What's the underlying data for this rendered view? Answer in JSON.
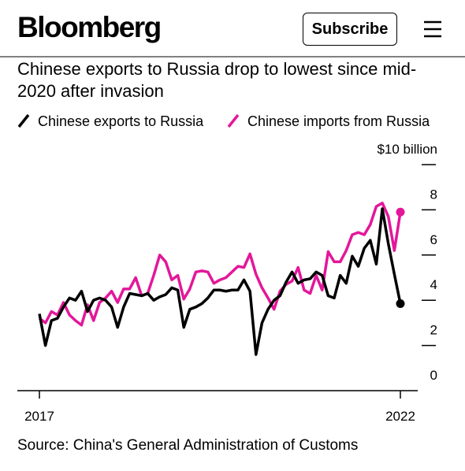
{
  "header": {
    "logo": "Bloomberg",
    "button": "Subscribe"
  },
  "chart_data": {
    "type": "line",
    "title": "Chinese exports to Russia drop to lowest since mid-2020 after invasion",
    "source": "Source: China's General Administration of Customs",
    "x": [
      0,
      1,
      2,
      3,
      4,
      5,
      6,
      7,
      8,
      9,
      10,
      11,
      12,
      13,
      14,
      15,
      16,
      17,
      18,
      19,
      20,
      21,
      22,
      23,
      24,
      25,
      26,
      27,
      28,
      29,
      30,
      31,
      32,
      33,
      34,
      35,
      36,
      37,
      38,
      39,
      40,
      41,
      42,
      43,
      44,
      45,
      46,
      47,
      48,
      49,
      50,
      51,
      52,
      53,
      54,
      55,
      56,
      57,
      58,
      59,
      60
    ],
    "xlim": [
      0,
      60
    ],
    "xticks": [
      {
        "value": 0,
        "label": "2017"
      },
      {
        "value": 60,
        "label": "2022"
      }
    ],
    "ylim": [
      0,
      10
    ],
    "yticks": [
      0,
      2,
      4,
      6,
      8,
      {
        "value": 10,
        "label": "$10 billion"
      }
    ],
    "series": [
      {
        "name": "Chinese exports to Russia",
        "color": "#000000",
        "values": [
          3.4,
          2.0,
          3.1,
          3.2,
          3.7,
          4.1,
          4.0,
          4.4,
          3.5,
          4.0,
          4.1,
          4.0,
          3.7,
          2.8,
          3.7,
          4.3,
          4.25,
          4.2,
          4.3,
          4.0,
          4.15,
          4.25,
          4.55,
          4.45,
          2.8,
          3.6,
          3.7,
          3.85,
          4.1,
          4.45,
          4.45,
          4.4,
          4.45,
          4.45,
          4.9,
          4.4,
          1.6,
          3.0,
          3.6,
          4.0,
          4.2,
          4.8,
          5.25,
          4.75,
          4.9,
          4.95,
          5.25,
          5.1,
          4.2,
          4.1,
          5.1,
          4.75,
          5.95,
          5.5,
          6.3,
          6.65,
          5.6,
          8.05,
          6.5,
          5.15,
          3.85
        ]
      },
      {
        "name": "Chinese imports from Russia",
        "color": "#e3179a",
        "values": [
          3.2,
          3.0,
          3.5,
          3.35,
          3.9,
          3.35,
          3.1,
          2.9,
          3.8,
          3.1,
          3.9,
          4.1,
          4.4,
          3.9,
          4.5,
          4.5,
          5.0,
          4.2,
          4.3,
          5.1,
          6.0,
          5.7,
          4.9,
          5.1,
          4.05,
          4.5,
          5.25,
          5.3,
          5.25,
          4.75,
          4.9,
          5.0,
          5.25,
          5.5,
          5.45,
          6.05,
          5.15,
          4.55,
          4.1,
          3.6,
          4.4,
          4.7,
          4.85,
          5.45,
          4.45,
          4.3,
          5.1,
          4.45,
          6.15,
          5.7,
          5.7,
          6.2,
          6.9,
          7.0,
          6.9,
          7.35,
          8.15,
          8.3,
          7.7,
          6.2,
          7.9
        ]
      }
    ]
  }
}
